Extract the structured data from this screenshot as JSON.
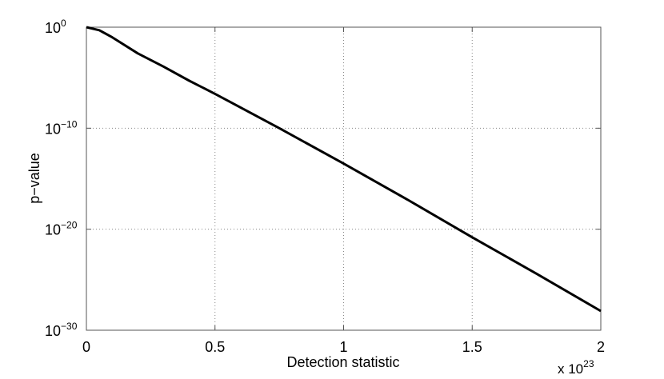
{
  "chart_data": {
    "type": "line",
    "title": "",
    "xlabel": "Detection statistic",
    "ylabel": "p−value",
    "x_multiplier_label": "x 10",
    "x_multiplier_exponent": "23",
    "xlim": [
      0,
      2
    ],
    "ylim_log10": [
      -30,
      0
    ],
    "yscale": "log",
    "grid": true,
    "x_ticks": [
      {
        "value": 0,
        "label": "0"
      },
      {
        "value": 0.5,
        "label": "0.5"
      },
      {
        "value": 1,
        "label": "1"
      },
      {
        "value": 1.5,
        "label": "1.5"
      },
      {
        "value": 2,
        "label": "2"
      }
    ],
    "y_ticks": [
      {
        "log10": 0,
        "base": "10",
        "exp": "0"
      },
      {
        "log10": -10,
        "base": "10",
        "exp": "−10"
      },
      {
        "log10": -20,
        "base": "10",
        "exp": "−20"
      },
      {
        "log10": -30,
        "base": "10",
        "exp": "−30"
      }
    ],
    "series": [
      {
        "color": "#000000",
        "x": [
          0,
          0.05,
          0.1,
          0.2,
          0.3,
          0.4,
          0.5,
          0.75,
          1.0,
          1.25,
          1.5,
          1.75,
          2.0
        ],
        "log10_y": [
          0,
          -0.3,
          -1.0,
          -2.6,
          -3.9,
          -5.3,
          -6.6,
          -10.0,
          -13.5,
          -17.1,
          -20.8,
          -24.4,
          -28.1
        ]
      }
    ]
  }
}
